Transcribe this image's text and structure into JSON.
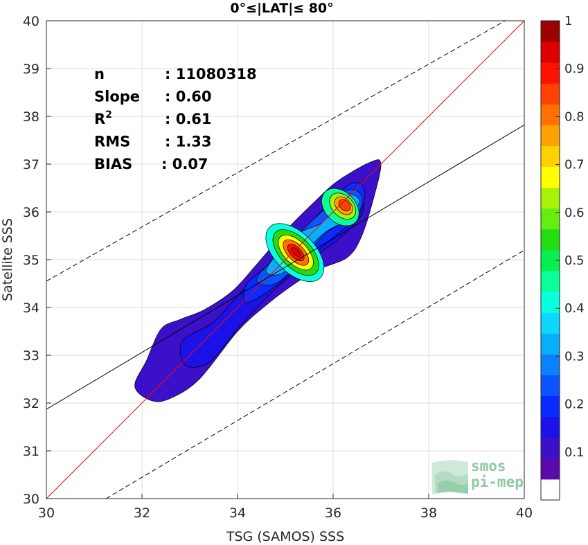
{
  "chart_data": {
    "type": "contour",
    "title": "0°≤|LAT|≤ 80°",
    "xlabel": "TSG (SAMOS) SSS",
    "ylabel": "Satellite SSS",
    "xlim": [
      30,
      40
    ],
    "ylim": [
      30,
      40
    ],
    "x_ticks": [
      "30",
      "32",
      "34",
      "36",
      "38",
      "40"
    ],
    "y_ticks": [
      "30",
      "31",
      "32",
      "33",
      "34",
      "35",
      "36",
      "37",
      "38",
      "39",
      "40"
    ],
    "grid": true,
    "stats": [
      {
        "label": "n",
        "value": ": 11080318"
      },
      {
        "label": "Slope",
        "value": ": 0.60"
      },
      {
        "label": "R",
        "superscript": "2",
        "value": ": 0.61"
      },
      {
        "label": "RMS",
        "value": ": 1.33"
      },
      {
        "label": "BIAS",
        "value": ": 0.07"
      }
    ],
    "lines": [
      {
        "kind": "identity",
        "color": "#ff0000",
        "dash": "solid",
        "x": [
          30,
          40
        ],
        "y": [
          30,
          40
        ]
      },
      {
        "kind": "regression",
        "color": "#000000",
        "dash": "solid",
        "x": [
          30,
          40
        ],
        "y": [
          31.87,
          37.82
        ]
      },
      {
        "kind": "upper_bound",
        "color": "#000000",
        "dash": "dashed",
        "x": [
          30,
          39.6
        ],
        "y": [
          34.55,
          40
        ]
      },
      {
        "kind": "lower_bound",
        "color": "#000000",
        "dash": "dashed",
        "x": [
          31.25,
          40
        ],
        "y": [
          30,
          35.2
        ]
      }
    ],
    "density_peaks": [
      {
        "x": 35.2,
        "y": 35.15,
        "value": 1.0
      },
      {
        "x": 36.2,
        "y": 36.15,
        "value": 0.85
      }
    ],
    "colorbar": {
      "range": [
        0,
        1
      ],
      "labels": [
        "0.1",
        "0.2",
        "0.3",
        "0.4",
        "0.5",
        "0.6",
        "0.7",
        "0.8",
        "0.9",
        "1"
      ],
      "colors": [
        "#ffffff",
        "#5a0aa8",
        "#3a10c8",
        "#1a12e8",
        "#0a2aff",
        "#0a55ff",
        "#0a82ff",
        "#0aaeff",
        "#0ad8ff",
        "#0affe0",
        "#0aff9a",
        "#0aef50",
        "#22dd10",
        "#66ee10",
        "#a8f20a",
        "#ffff00",
        "#ffd200",
        "#ffa200",
        "#ff7200",
        "#ff4200",
        "#ff1200",
        "#dd0000",
        "#9a0000"
      ]
    }
  },
  "logo": {
    "line1": "smos",
    "line2": "pi-mep"
  }
}
